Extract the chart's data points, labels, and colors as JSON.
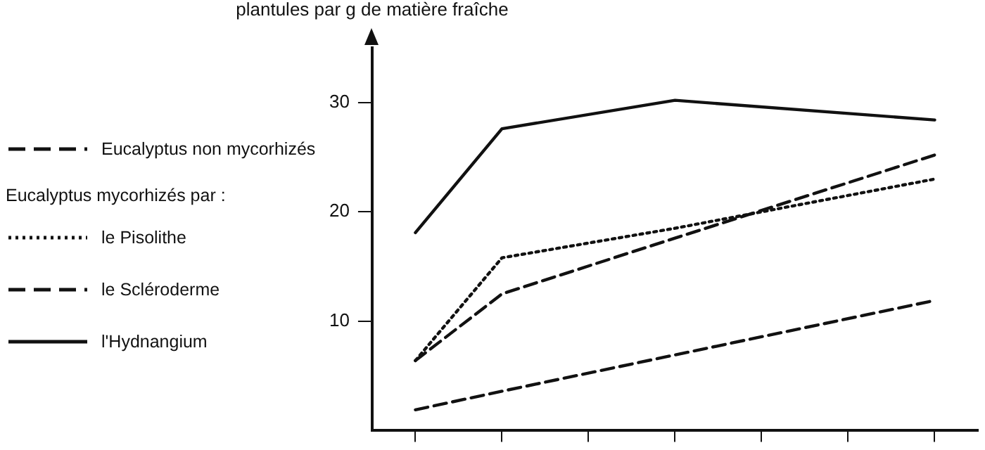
{
  "chart_data": {
    "type": "line",
    "ylabel": "plantules par g de matière fraîche",
    "legend_title": "Eucalyptus mycorhizés par :",
    "legend": "left",
    "grid": false,
    "marker": "none",
    "tick_labels": "y",
    "categories": [
      null,
      null,
      null,
      null,
      null,
      null,
      null
    ],
    "ylim": [
      0,
      35
    ],
    "yticks": [
      10,
      20,
      30
    ],
    "series": [
      {
        "name": "Eucalyptus non mycorhizés",
        "color": "#111111",
        "line_style": "dashed",
        "values": [
          1.9,
          3.6,
          null,
          null,
          null,
          null,
          11.9
        ]
      },
      {
        "name": "le Pisolithe",
        "color": "#111111",
        "line_style": "dotted",
        "values": [
          6.4,
          15.8,
          null,
          18.5,
          null,
          null,
          23.0
        ]
      },
      {
        "name": "le Scléroderme",
        "color": "#111111",
        "line_style": "dashed",
        "values": [
          6.4,
          12.5,
          null,
          17.6,
          null,
          null,
          25.2
        ]
      },
      {
        "name": "l'Hydnangium",
        "color": "#111111",
        "line_style": "solid",
        "values": [
          18.1,
          27.6,
          null,
          30.2,
          null,
          null,
          28.4
        ]
      }
    ]
  }
}
